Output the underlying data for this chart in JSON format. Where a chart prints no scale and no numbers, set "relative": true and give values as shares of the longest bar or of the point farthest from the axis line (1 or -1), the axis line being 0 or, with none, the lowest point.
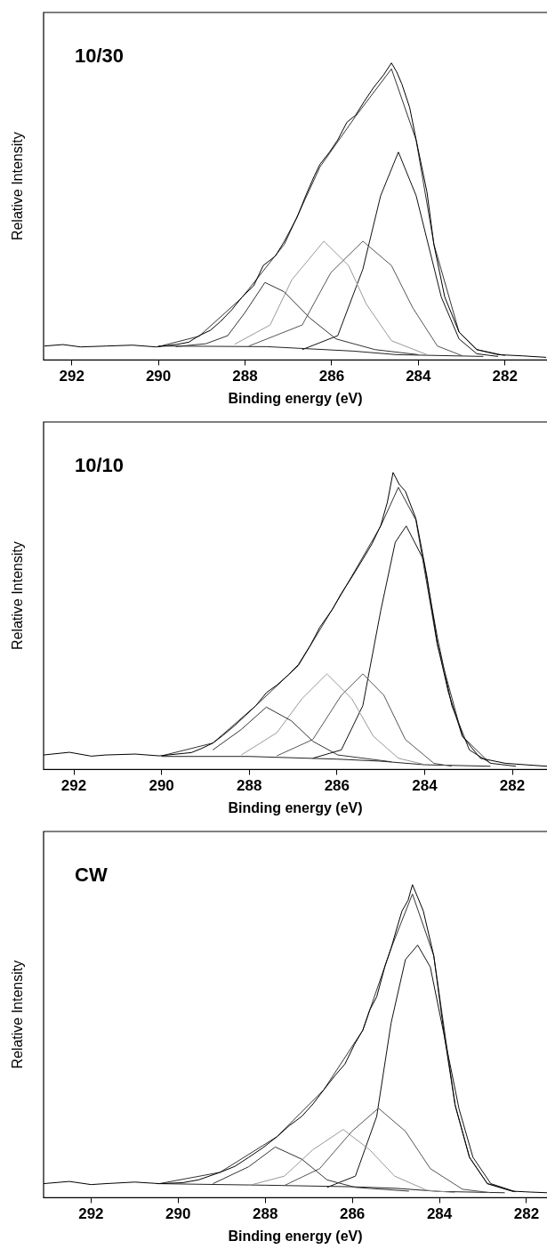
{
  "chart_data": [
    {
      "type": "line",
      "title": "10/30",
      "xlabel": "Binding energy (eV)",
      "ylabel": "Relative Intensity",
      "relative": true,
      "legend": false,
      "xlim": [
        292.65,
        281.03
      ],
      "xticks": [
        292,
        290,
        288,
        286,
        284,
        282
      ],
      "series": [
        {
          "color": "#000000",
          "x": [
            292.63,
            292.2,
            291.8,
            291.2,
            290.6,
            290.05,
            289.55,
            289.3,
            289.06,
            288.8,
            288.57,
            288.3,
            288.07,
            287.8,
            287.58,
            287.3,
            287.09,
            286.8,
            286.6,
            286.4,
            286.27,
            286.05,
            285.86,
            285.65,
            285.45,
            285.25,
            285.03,
            284.8,
            284.62,
            284.5,
            284.38,
            284.2,
            284.05,
            283.8,
            283.64,
            283.39,
            283.06,
            282.65,
            282.16,
            281.6,
            281.05
          ],
          "values": [
            0.047,
            0.052,
            0.044,
            0.047,
            0.05,
            0.044,
            0.053,
            0.06,
            0.082,
            0.1,
            0.129,
            0.17,
            0.212,
            0.25,
            0.318,
            0.35,
            0.4,
            0.48,
            0.553,
            0.62,
            0.659,
            0.7,
            0.741,
            0.8,
            0.824,
            0.87,
            0.918,
            0.96,
            1.0,
            0.97,
            0.929,
            0.85,
            0.741,
            0.565,
            0.388,
            0.212,
            0.094,
            0.035,
            0.018,
            0.014,
            0.009
          ]
        },
        {
          "color": "#333333",
          "x": [
            290.0,
            289.06,
            288.07,
            287.09,
            286.27,
            285.45,
            284.62,
            284.05,
            283.64,
            283.06,
            282.65,
            282.0
          ],
          "values": [
            0.045,
            0.08,
            0.21,
            0.39,
            0.65,
            0.82,
            0.98,
            0.74,
            0.39,
            0.094,
            0.035,
            0.015
          ]
        },
        {
          "color": "#333333",
          "x": [
            289.6,
            288.9,
            288.4,
            288.0,
            287.54,
            287.1,
            286.5,
            285.9,
            285.0,
            284.0
          ],
          "values": [
            0.045,
            0.055,
            0.082,
            0.16,
            0.261,
            0.23,
            0.141,
            0.071,
            0.035,
            0.018
          ]
        },
        {
          "color": "#999999",
          "x": [
            288.24,
            287.42,
            286.92,
            286.18,
            285.61,
            285.2,
            284.62,
            283.8
          ],
          "values": [
            0.053,
            0.118,
            0.27,
            0.4,
            0.318,
            0.188,
            0.065,
            0.018
          ]
        },
        {
          "color": "#555555",
          "x": [
            287.91,
            286.68,
            286.02,
            285.28,
            284.62,
            284.13,
            283.56,
            282.98
          ],
          "values": [
            0.047,
            0.118,
            0.294,
            0.4,
            0.318,
            0.176,
            0.047,
            0.014
          ]
        },
        {
          "color": "#111111",
          "x": [
            286.68,
            285.86,
            285.28,
            284.87,
            284.46,
            284.05,
            283.47,
            283.06,
            282.65,
            282.16
          ],
          "values": [
            0.035,
            0.082,
            0.306,
            0.553,
            0.7,
            0.553,
            0.212,
            0.071,
            0.021,
            0.012
          ]
        },
        {
          "color": "#222222",
          "x": [
            290.0,
            287.5,
            285.5,
            284.5,
            282.5
          ],
          "values": [
            0.047,
            0.045,
            0.03,
            0.018,
            0.012
          ]
        }
      ]
    },
    {
      "type": "line",
      "title": "10/10",
      "xlabel": "Binding energy (eV)",
      "ylabel": "Relative Intensity",
      "relative": true,
      "legend": false,
      "xlim": [
        292.69,
        281.21
      ],
      "xticks": [
        292,
        290,
        288,
        286,
        284,
        282
      ],
      "series": [
        {
          "color": "#000000",
          "x": [
            292.69,
            292.1,
            291.6,
            291.27,
            290.6,
            290.05,
            289.32,
            289.1,
            288.83,
            288.6,
            288.34,
            288.1,
            287.85,
            287.6,
            287.37,
            287.1,
            286.88,
            286.6,
            286.39,
            286.1,
            285.9,
            285.65,
            285.41,
            285.2,
            285.0,
            284.85,
            284.72,
            284.58,
            284.44,
            284.2,
            283.95,
            283.71,
            283.46,
            283.14,
            282.73,
            282.16,
            281.7,
            281.21
          ],
          "values": [
            0.049,
            0.058,
            0.045,
            0.049,
            0.052,
            0.046,
            0.057,
            0.07,
            0.089,
            0.115,
            0.147,
            0.18,
            0.215,
            0.26,
            0.284,
            0.32,
            0.353,
            0.42,
            0.479,
            0.54,
            0.593,
            0.65,
            0.708,
            0.76,
            0.822,
            0.9,
            1.0,
            0.96,
            0.937,
            0.845,
            0.651,
            0.422,
            0.261,
            0.112,
            0.038,
            0.021,
            0.016,
            0.011
          ]
        },
        {
          "color": "#333333",
          "x": [
            290.0,
            288.83,
            287.85,
            286.88,
            285.9,
            285.0,
            284.6,
            284.2,
            283.71,
            283.14,
            282.5
          ],
          "values": [
            0.046,
            0.089,
            0.215,
            0.35,
            0.59,
            0.82,
            0.95,
            0.84,
            0.42,
            0.112,
            0.02
          ]
        },
        {
          "color": "#333333",
          "x": [
            288.83,
            288.18,
            287.61,
            287.04,
            286.55,
            285.98,
            284.76
          ],
          "values": [
            0.066,
            0.135,
            0.21,
            0.164,
            0.095,
            0.049,
            0.026
          ]
        },
        {
          "color": "#999999",
          "x": [
            288.18,
            287.37,
            286.8,
            286.23,
            285.66,
            285.17,
            284.6,
            283.95
          ],
          "values": [
            0.049,
            0.124,
            0.238,
            0.322,
            0.238,
            0.112,
            0.038,
            0.015
          ]
        },
        {
          "color": "#555555",
          "x": [
            287.37,
            286.55,
            285.9,
            285.41,
            284.93,
            284.44,
            283.79,
            283.38
          ],
          "values": [
            0.046,
            0.101,
            0.25,
            0.322,
            0.25,
            0.101,
            0.021,
            0.011
          ]
        },
        {
          "color": "#111111",
          "x": [
            286.55,
            285.9,
            285.41,
            285.0,
            284.67,
            284.42,
            284.03,
            283.71,
            283.38,
            282.98,
            282.49,
            281.92
          ],
          "values": [
            0.038,
            0.066,
            0.215,
            0.536,
            0.765,
            0.82,
            0.708,
            0.444,
            0.215,
            0.066,
            0.021,
            0.011
          ]
        },
        {
          "color": "#222222",
          "x": [
            290.0,
            288.0,
            286.0,
            285.0,
            284.0,
            282.5
          ],
          "values": [
            0.044,
            0.044,
            0.035,
            0.028,
            0.016,
            0.011
          ]
        }
      ]
    },
    {
      "type": "line",
      "title": "CW",
      "xlabel": "Binding energy (eV)",
      "ylabel": "Relative Intensity",
      "relative": true,
      "legend": false,
      "xlim": [
        293.09,
        281.53
      ],
      "xticks": [
        292,
        290,
        288,
        286,
        284,
        282
      ],
      "series": [
        {
          "color": "#000000",
          "x": [
            293.09,
            292.5,
            292.0,
            291.66,
            291.0,
            290.43,
            289.9,
            289.53,
            289.04,
            288.7,
            288.38,
            288.05,
            287.73,
            287.45,
            287.16,
            286.9,
            286.66,
            286.4,
            286.17,
            285.95,
            285.76,
            285.6,
            285.44,
            285.25,
            285.11,
            284.98,
            284.86,
            284.72,
            284.62,
            284.5,
            284.37,
            284.13,
            283.88,
            283.64,
            283.31,
            282.9,
            282.33,
            281.9,
            281.53
          ],
          "values": [
            0.045,
            0.052,
            0.042,
            0.045,
            0.05,
            0.045,
            0.048,
            0.057,
            0.081,
            0.1,
            0.129,
            0.16,
            0.195,
            0.23,
            0.26,
            0.3,
            0.344,
            0.39,
            0.427,
            0.49,
            0.535,
            0.6,
            0.642,
            0.74,
            0.797,
            0.86,
            0.916,
            0.95,
            1.0,
            0.96,
            0.916,
            0.773,
            0.511,
            0.296,
            0.129,
            0.045,
            0.021,
            0.018,
            0.016
          ]
        },
        {
          "color": "#333333",
          "x": [
            290.43,
            289.04,
            287.73,
            286.66,
            285.76,
            285.11,
            284.62,
            284.13,
            283.64,
            283.31,
            282.9,
            282.3
          ],
          "values": [
            0.045,
            0.081,
            0.195,
            0.344,
            0.535,
            0.797,
            0.97,
            0.773,
            0.296,
            0.129,
            0.045,
            0.02
          ]
        },
        {
          "color": "#333333",
          "x": [
            289.2,
            288.38,
            287.77,
            287.16,
            286.58,
            285.93,
            284.7
          ],
          "values": [
            0.045,
            0.099,
            0.162,
            0.123,
            0.057,
            0.033,
            0.021
          ]
        },
        {
          "color": "#999999",
          "x": [
            288.38,
            287.56,
            286.91,
            286.21,
            285.6,
            285.03,
            284.29,
            283.64
          ],
          "values": [
            0.039,
            0.069,
            0.153,
            0.218,
            0.153,
            0.069,
            0.024,
            0.016
          ]
        },
        {
          "color": "#555555",
          "x": [
            287.56,
            286.75,
            286.01,
            285.4,
            284.78,
            284.21,
            283.47,
            282.82
          ],
          "values": [
            0.039,
            0.093,
            0.212,
            0.286,
            0.212,
            0.093,
            0.027,
            0.016
          ]
        },
        {
          "color": "#111111",
          "x": [
            286.58,
            285.93,
            285.44,
            285.11,
            284.78,
            284.5,
            284.21,
            283.88,
            283.55,
            283.23,
            282.82,
            282.25
          ],
          "values": [
            0.033,
            0.069,
            0.26,
            0.558,
            0.761,
            0.807,
            0.737,
            0.511,
            0.284,
            0.129,
            0.045,
            0.019
          ]
        },
        {
          "color": "#222222",
          "x": [
            290.5,
            288.0,
            286.0,
            285.0,
            284.0,
            282.5
          ],
          "values": [
            0.045,
            0.04,
            0.035,
            0.03,
            0.02,
            0.016
          ]
        }
      ]
    }
  ]
}
